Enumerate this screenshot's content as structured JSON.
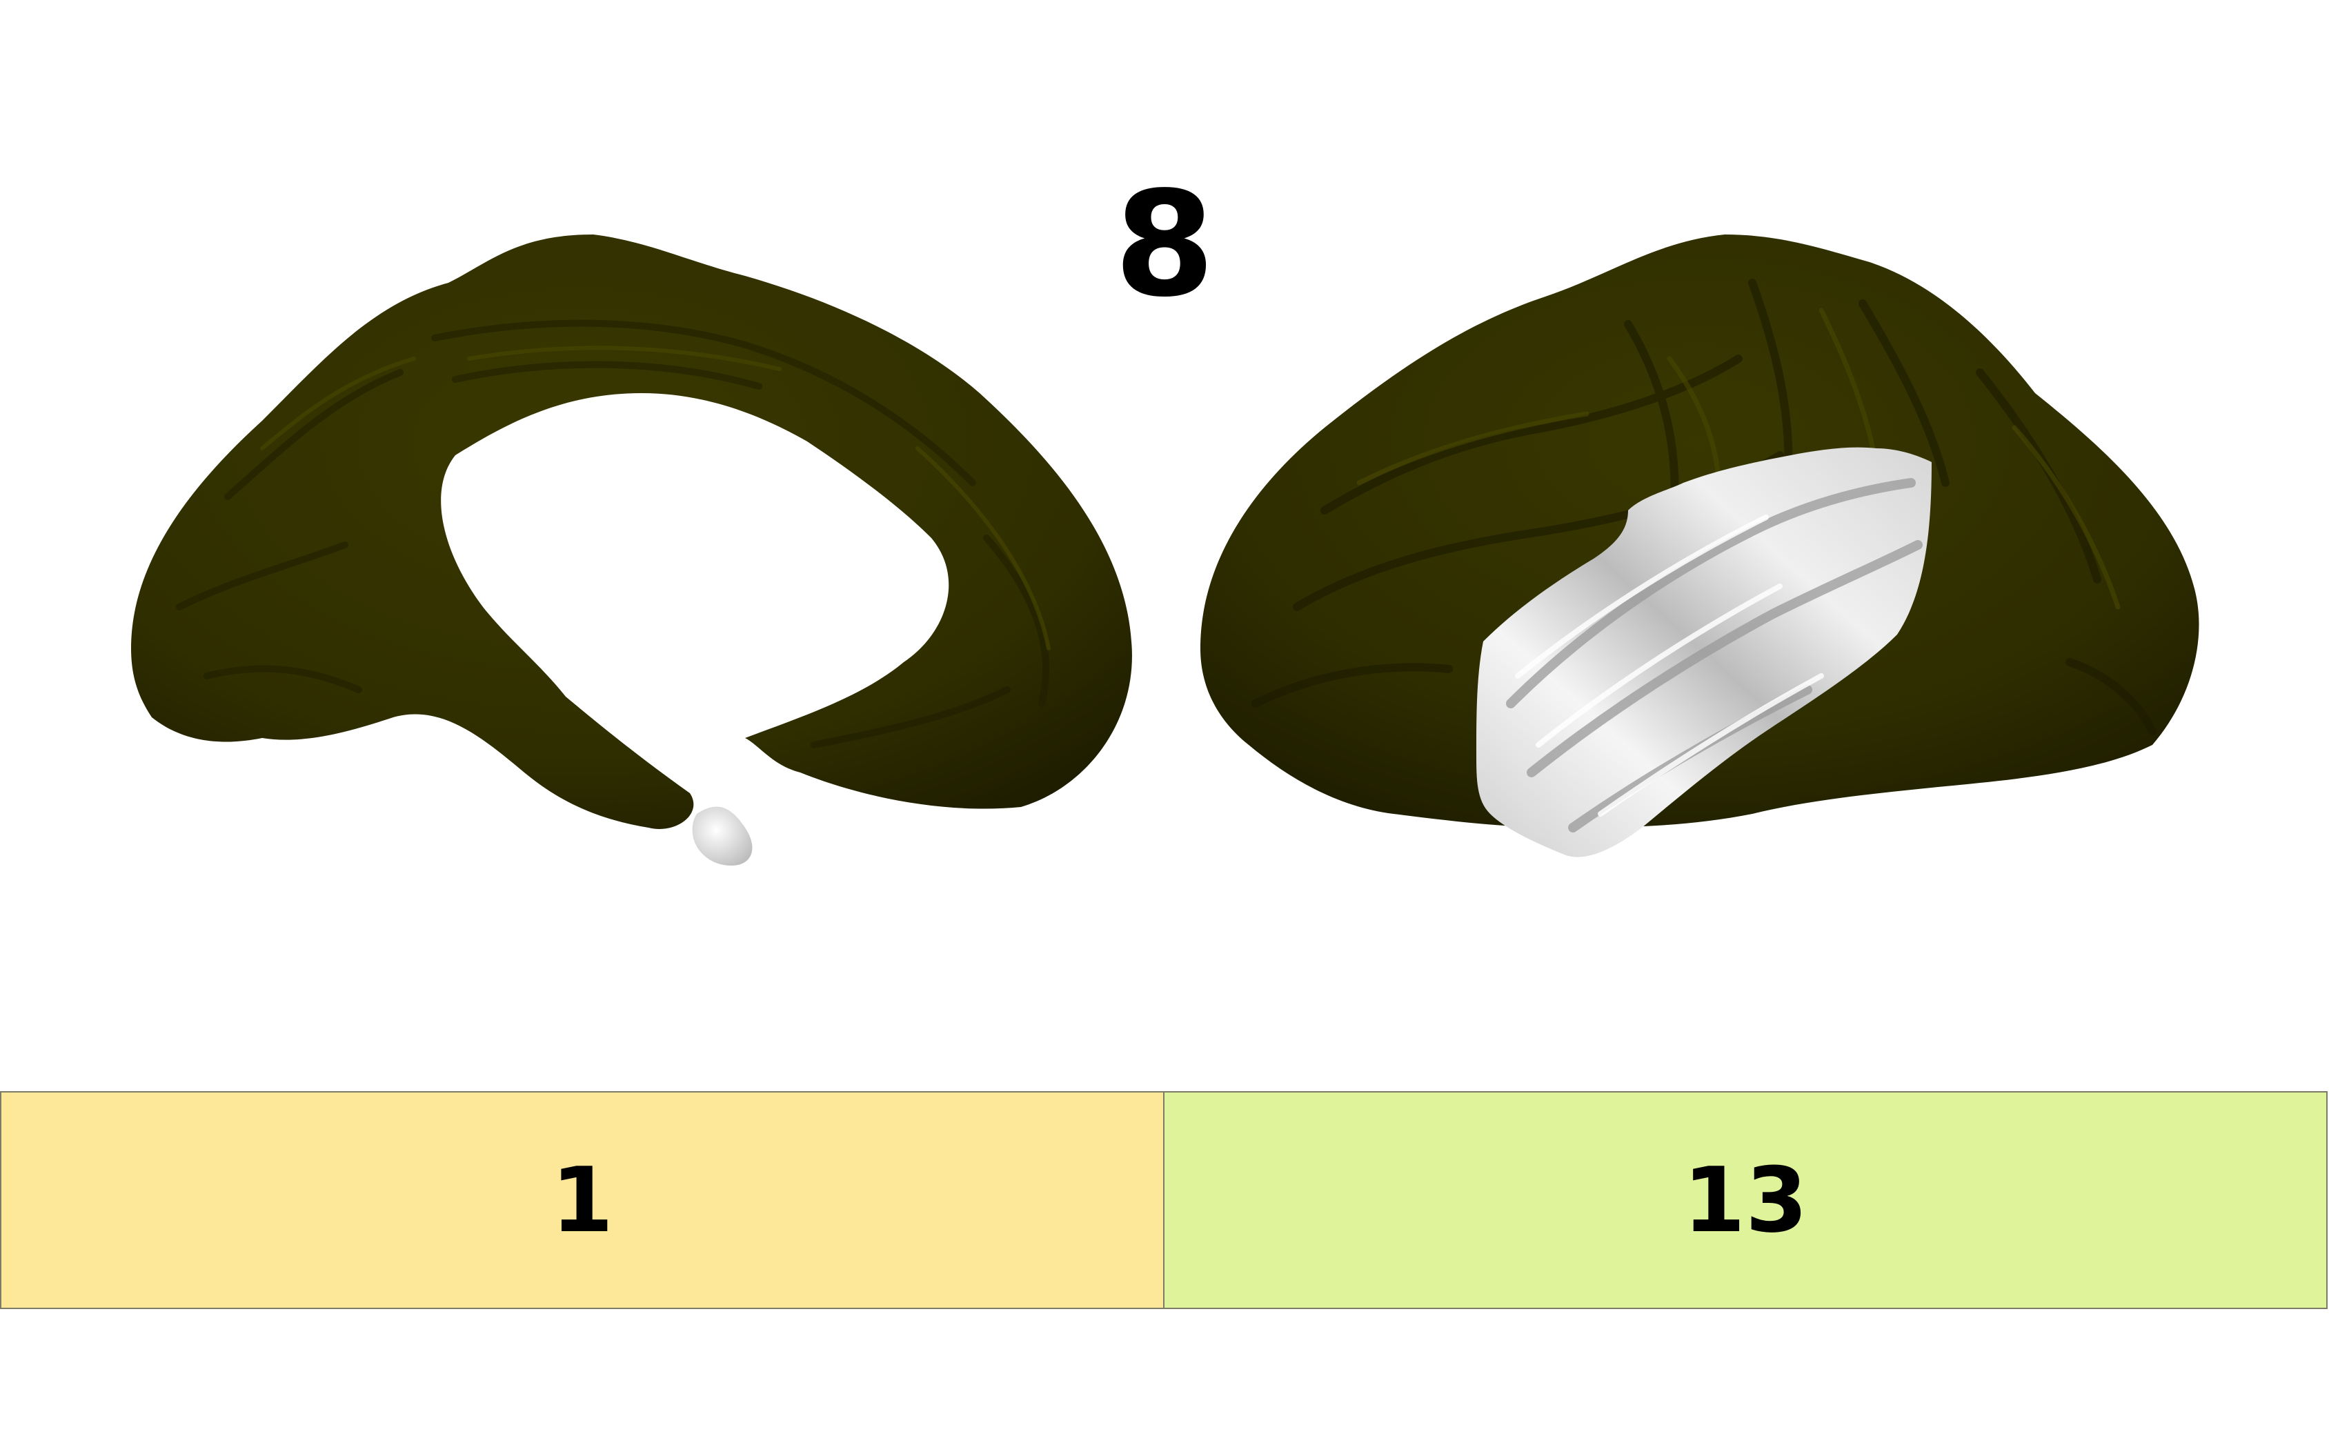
{
  "figure": {
    "title": "8",
    "brain_color": "#2f2e00",
    "highlight_color": "#d9d9d9"
  },
  "bars": [
    {
      "label": "1",
      "color": "#fde899"
    },
    {
      "label": "13",
      "color": "#dff39a"
    }
  ]
}
